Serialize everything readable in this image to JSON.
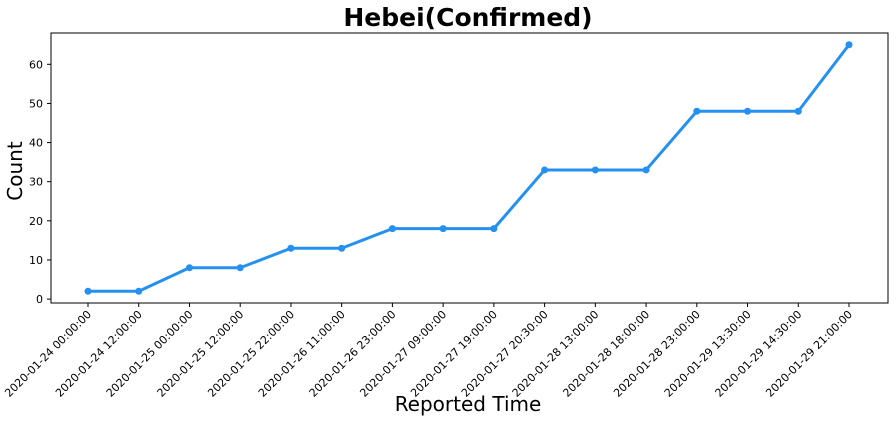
{
  "chart_data": {
    "type": "line",
    "title": "Hebei(Confirmed)",
    "xlabel": "Reported Time",
    "ylabel": "Count",
    "categories": [
      "2020-01-24 00:00:00",
      "2020-01-24 12:00:00",
      "2020-01-25 00:00:00",
      "2020-01-25 12:00:00",
      "2020-01-25 22:00:00",
      "2020-01-26 11:00:00",
      "2020-01-26 23:00:00",
      "2020-01-27 09:00:00",
      "2020-01-27 19:00:00",
      "2020-01-27 20:30:00",
      "2020-01-28 13:00:00",
      "2020-01-28 18:00:00",
      "2020-01-28 23:00:00",
      "2020-01-29 13:30:00",
      "2020-01-29 14:30:00",
      "2020-01-29 21:00:00"
    ],
    "values": [
      2,
      2,
      8,
      8,
      13,
      13,
      18,
      18,
      18,
      33,
      33,
      33,
      48,
      48,
      48,
      65
    ],
    "ylim": [
      -1,
      68
    ],
    "yticks": [
      "0",
      "10",
      "20",
      "30",
      "40",
      "50",
      "60"
    ],
    "grid": false,
    "color": "#2490f0"
  }
}
